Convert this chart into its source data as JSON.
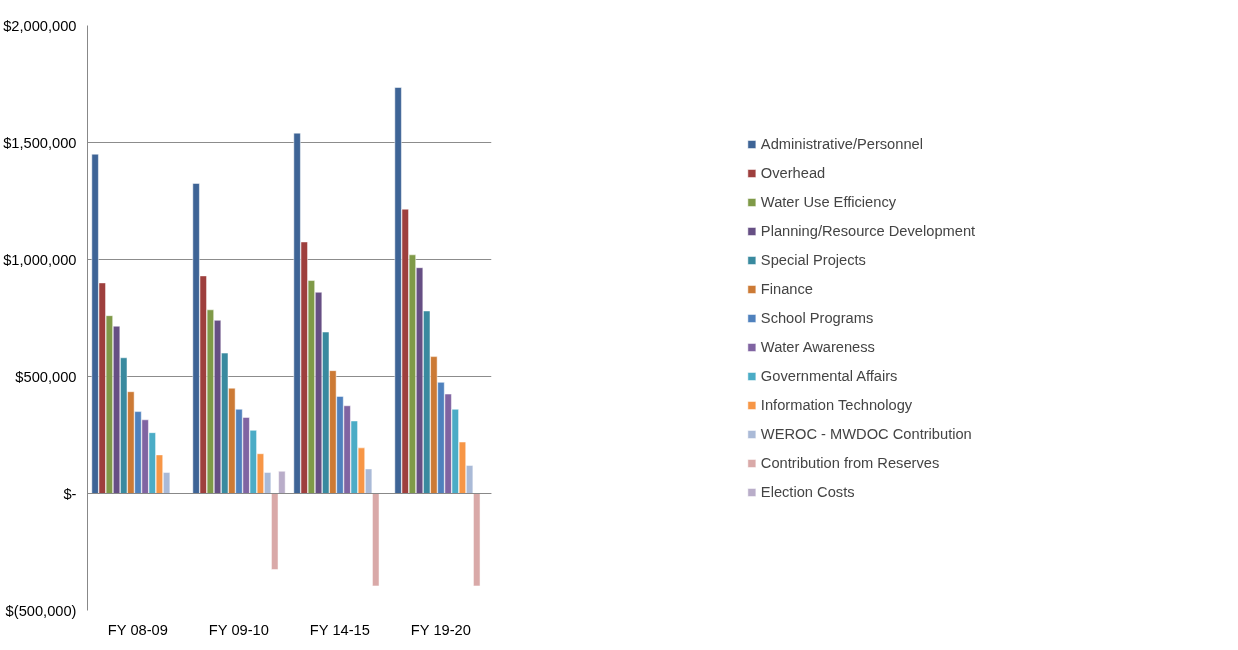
{
  "chart_data": {
    "type": "bar",
    "categories": [
      "FY 08-09",
      "FY 09-10",
      "FY 14-15",
      "FY 19-20"
    ],
    "series": [
      {
        "name": "Administrative/Personnel",
        "color": "#3e6496",
        "values": [
          1450000,
          1325000,
          1540000,
          1735000
        ]
      },
      {
        "name": "Overhead",
        "color": "#9e3f3d",
        "values": [
          900000,
          930000,
          1075000,
          1215000
        ]
      },
      {
        "name": "Water Use Efficiency",
        "color": "#7f9a48",
        "values": [
          760000,
          785000,
          910000,
          1020000
        ]
      },
      {
        "name": "Planning/Resource Development",
        "color": "#664f84",
        "values": [
          715000,
          740000,
          860000,
          965000
        ]
      },
      {
        "name": "Special Projects",
        "color": "#398a9f",
        "values": [
          580000,
          600000,
          690000,
          780000
        ]
      },
      {
        "name": "Finance",
        "color": "#cc7a35",
        "values": [
          435000,
          450000,
          525000,
          585000
        ]
      },
      {
        "name": "School Programs",
        "color": "#4f81bd",
        "values": [
          350000,
          360000,
          415000,
          475000
        ]
      },
      {
        "name": "Water Awareness",
        "color": "#8064a2",
        "values": [
          315000,
          325000,
          375000,
          425000
        ]
      },
      {
        "name": "Governmental Affairs",
        "color": "#4bacc6",
        "values": [
          260000,
          270000,
          310000,
          360000
        ]
      },
      {
        "name": "Information Technology",
        "color": "#f79646",
        "values": [
          165000,
          170000,
          195000,
          220000
        ]
      },
      {
        "name": "WEROC - MWDOC Contribution",
        "color": "#aabad7",
        "values": [
          90000,
          90000,
          105000,
          120000
        ]
      },
      {
        "name": "Contribution from Reserves",
        "color": "#d9a9a8",
        "values": [
          null,
          -325000,
          -395000,
          -395000
        ]
      },
      {
        "name": "Election Costs",
        "color": "#b9adc9",
        "values": [
          null,
          95000,
          null,
          null
        ]
      }
    ],
    "ylim": [
      -500000,
      2000000
    ],
    "yticks": [
      {
        "value": -500000,
        "label": "$(500,000)"
      },
      {
        "value": 0,
        "label": "$-"
      },
      {
        "value": 500000,
        "label": "$500,000"
      },
      {
        "value": 1000000,
        "label": "$1,000,000"
      },
      {
        "value": 1500000,
        "label": "$1,500,000"
      },
      {
        "value": 2000000,
        "label": "$2,000,000"
      }
    ],
    "grid": "y",
    "legend": "right"
  }
}
